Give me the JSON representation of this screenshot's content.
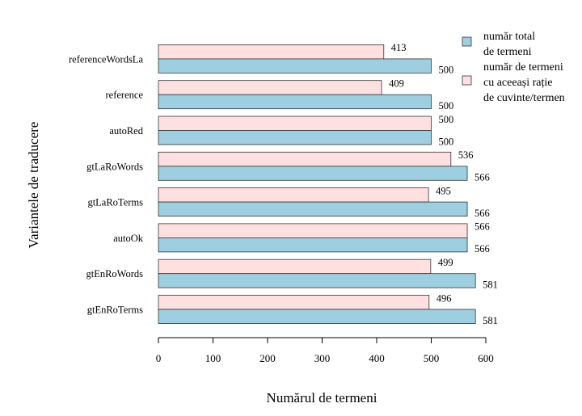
{
  "chart_data": {
    "type": "bar",
    "orientation": "horizontal",
    "categories": [
      "gtEnRoTerms",
      "gtEnRoWords",
      "autoOk",
      "gtLaRoTerms",
      "gtLaRoWords",
      "autoRed",
      "reference",
      "referenceWordsLa"
    ],
    "series": [
      {
        "name_lines": [
          "număr total",
          "de termeni"
        ],
        "color": "#9ecfe0",
        "values": [
          581,
          581,
          566,
          566,
          566,
          500,
          500,
          500
        ]
      },
      {
        "name_lines": [
          "număr de termeni",
          "cu aceeași rație",
          "de cuvinte/termen"
        ],
        "color": "#ffe0e0",
        "values": [
          496,
          499,
          566,
          495,
          536,
          500,
          409,
          413
        ]
      }
    ],
    "xlabel": "Numărul de termeni",
    "ylabel": "Variantele de traducere",
    "xlim": [
      0,
      600
    ],
    "xticks": [
      0,
      100,
      200,
      300,
      400,
      500,
      600
    ],
    "grid": false,
    "legend_position": "top-right"
  }
}
